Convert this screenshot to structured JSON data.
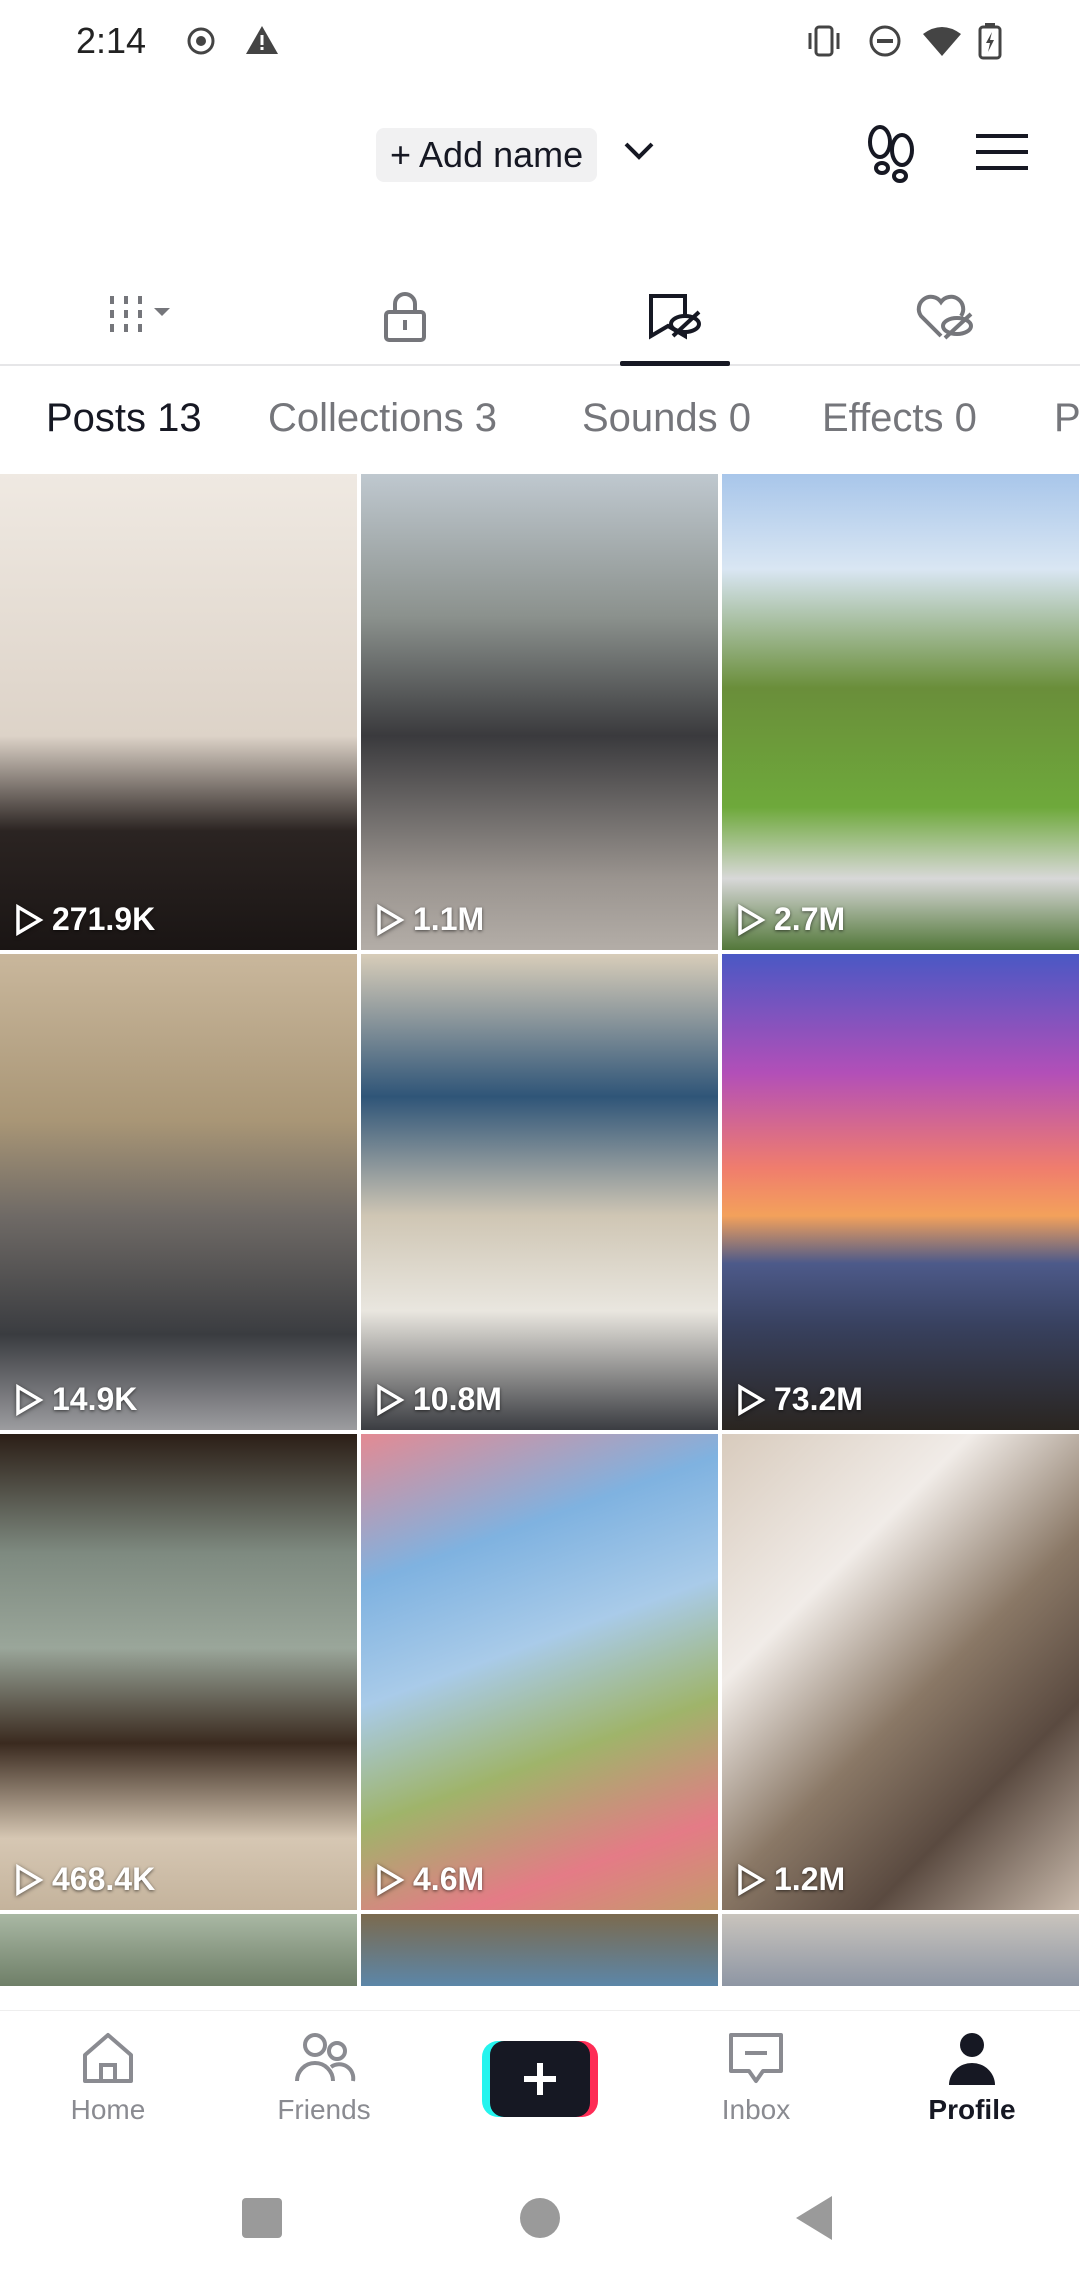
{
  "status_bar": {
    "time": "2:14"
  },
  "header": {
    "add_name_label": "+ Add name"
  },
  "content_tabs": [
    {
      "label": "Posts 13",
      "active": true
    },
    {
      "label": "Collections 3"
    },
    {
      "label": "Sounds 0"
    },
    {
      "label": "Effects 0"
    },
    {
      "label": "P"
    }
  ],
  "posts": [
    {
      "views": "271.9K"
    },
    {
      "views": "1.1M"
    },
    {
      "views": "2.7M"
    },
    {
      "views": "14.9K"
    },
    {
      "views": "10.8M"
    },
    {
      "views": "73.2M"
    },
    {
      "views": "468.4K"
    },
    {
      "views": "4.6M"
    },
    {
      "views": "1.2M"
    }
  ],
  "bottom_nav": {
    "home": "Home",
    "friends": "Friends",
    "inbox": "Inbox",
    "profile": "Profile"
  },
  "colors": {
    "accent_pink": "#fe2c55",
    "accent_cyan": "#25f4ee",
    "text_primary": "#161823"
  }
}
